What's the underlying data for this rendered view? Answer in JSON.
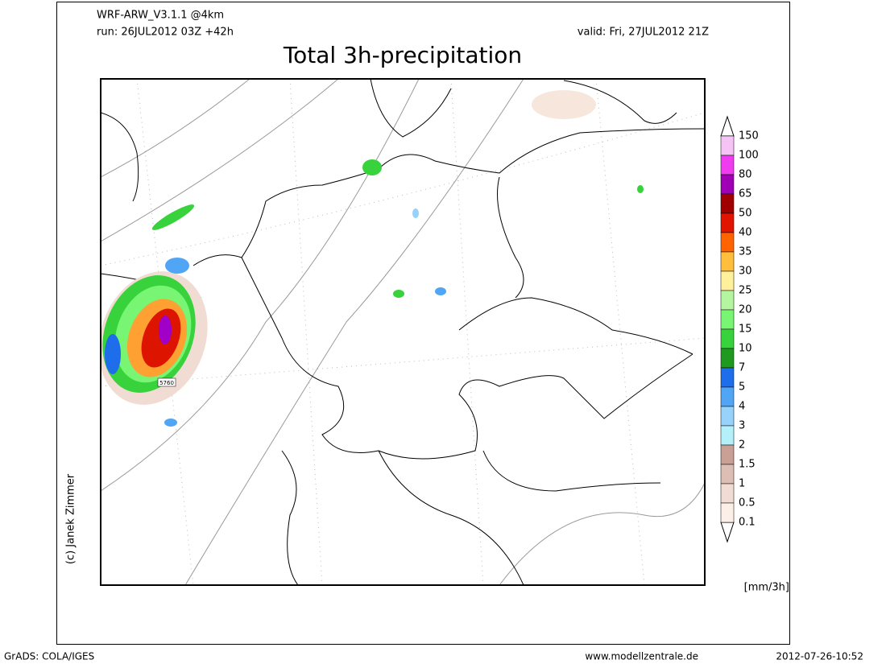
{
  "header": {
    "model": "WRF-ARW_V3.1.1 @4km",
    "run": "run: 26JUL2012 03Z +42h",
    "valid": "valid: Fri, 27JUL2012 21Z",
    "title": "Total 3h-precipitation"
  },
  "map": {
    "contour_label": "5760"
  },
  "colorbar": {
    "unit": "[mm/3h]",
    "levels": [
      150,
      100,
      80,
      65,
      50,
      40,
      35,
      30,
      25,
      20,
      15,
      10,
      7,
      5,
      4,
      3,
      2,
      1.5,
      1,
      0.5,
      0.1
    ],
    "colors": [
      "#f5c3f5",
      "#f03cf0",
      "#a000b4",
      "#a00000",
      "#e11400",
      "#ff6400",
      "#ffbe3c",
      "#fff09b",
      "#b4f5a0",
      "#78f573",
      "#37d23c",
      "#1e9b1e",
      "#1e6eeb",
      "#50a5f5",
      "#96d2fa",
      "#b4f0fa",
      "#c8a096",
      "#dcbeb4",
      "#f0dcd2",
      "#fbefe8"
    ]
  },
  "footer": {
    "copyright": "(c) Janek Zimmer",
    "software": "GrADS: COLA/IGES",
    "website": "www.modellzentrale.de",
    "timestamp": "2012-07-26-10:52"
  }
}
